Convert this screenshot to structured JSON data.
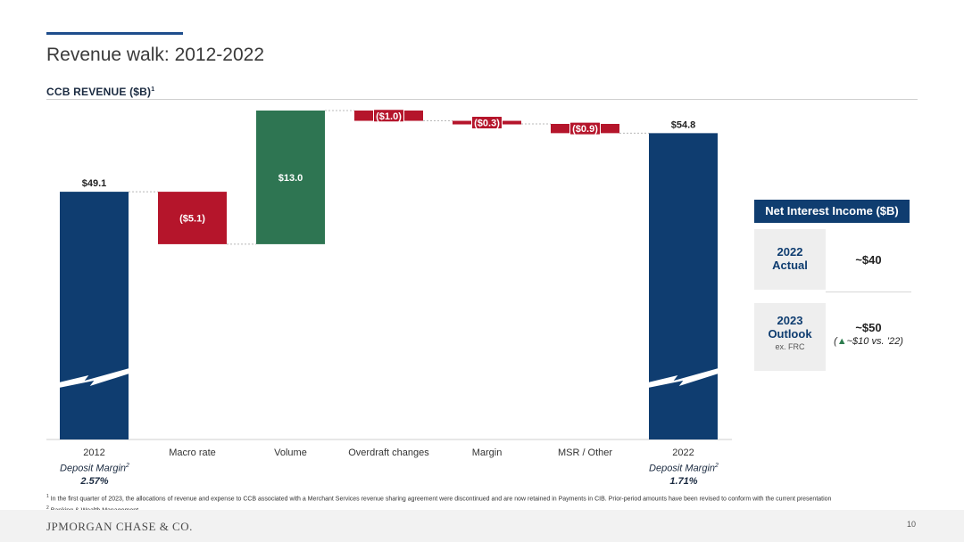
{
  "slide": {
    "title": "Revenue walk: 2012-2022",
    "subtitle": "CCB REVENUE ($B)",
    "subtitle_sup": "1"
  },
  "chart_data": {
    "type": "waterfall",
    "unit": "$B",
    "categories": [
      "2012",
      "Macro rate",
      "Volume",
      "Overdraft changes",
      "Margin",
      "MSR / Other",
      "2022"
    ],
    "steps": [
      {
        "category": "2012",
        "kind": "total",
        "value": 49.1,
        "label": "$49.1",
        "color": "#0f3d70"
      },
      {
        "category": "Macro rate",
        "kind": "delta",
        "value": -5.1,
        "label": "($5.1)",
        "color": "#b5152b"
      },
      {
        "category": "Volume",
        "kind": "delta",
        "value": 13.0,
        "label": "$13.0",
        "color": "#2e7552"
      },
      {
        "category": "Overdraft changes",
        "kind": "delta",
        "value": -1.0,
        "label": "($1.0)",
        "color": "#b5152b"
      },
      {
        "category": "Margin",
        "kind": "delta",
        "value": -0.3,
        "label": "($0.3)",
        "color": "#b5152b"
      },
      {
        "category": "MSR / Other",
        "kind": "delta",
        "value": -0.9,
        "label": "($0.9)",
        "color": "#b5152b"
      },
      {
        "category": "2022",
        "kind": "total",
        "value": 54.8,
        "label": "$54.8",
        "color": "#0f3d70"
      }
    ],
    "axis_break": true,
    "ylim": [
      25,
      57
    ],
    "grid": false
  },
  "deposit_margins": [
    {
      "label": "Deposit Margin",
      "sup": "2",
      "value": "2.57%"
    },
    {
      "label": "Deposit Margin",
      "sup": "2",
      "value": "1.71%"
    }
  ],
  "nii": {
    "header": "Net Interest Income ($B)",
    "actual_label_1": "2022",
    "actual_label_2": "Actual",
    "actual_value": "~$40",
    "outlook_label_1": "2023",
    "outlook_label_2": "Outlook",
    "outlook_note": "ex. FRC",
    "outlook_value": "~$50",
    "outlook_delta_arrow": "▲",
    "outlook_delta": "~$10 vs. ’22",
    "delta_color": "#2e7d4f"
  },
  "footnotes": {
    "n1_sup": "1",
    "n1": "In the first quarter of 2023, the allocations of revenue and expense to CCB associated with a Merchant Services revenue sharing agreement were discontinued and are now retained in Payments in CIB. Prior-period amounts have been revised to conform with the current presentation",
    "n2_sup": "2",
    "n2": "Banking & Wealth Management"
  },
  "footer": {
    "logo": "JPMORGAN CHASE & CO.",
    "page": "10"
  }
}
